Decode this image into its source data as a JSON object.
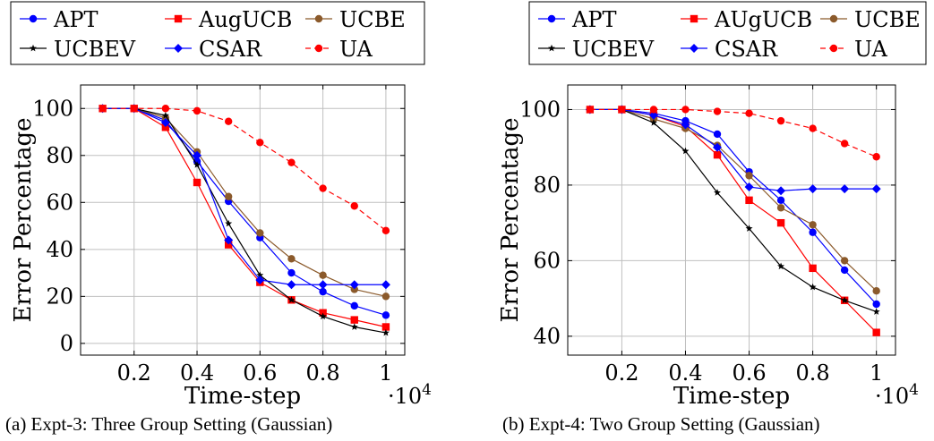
{
  "colors": {
    "APT": "#0000ff",
    "AugUCB": "#ff0000",
    "UCBE": "#8b5a2b",
    "UCBEV": "#000000",
    "CSAR": "#0000ff",
    "UA": "#ff0000",
    "grid": "#bfbfbf"
  },
  "chart_data": [
    {
      "type": "line",
      "caption": "(a) Expt-3: Three Group Setting (Gaussian)",
      "xlabel": "Time-step",
      "xmultiplier": "·10",
      "xmultiplier_exp": "4",
      "ylabel": "Error Percentage",
      "xlim": [
        0.03,
        1.06
      ],
      "ylim": [
        -5,
        110
      ],
      "xticks": [
        0.2,
        0.4,
        0.6,
        0.8,
        1
      ],
      "xtick_labels": [
        "0.2",
        "0.4",
        "0.6",
        "0.8",
        "1"
      ],
      "yticks": [
        0,
        20,
        40,
        60,
        80,
        100
      ],
      "ytick_labels": [
        "0",
        "20",
        "40",
        "60",
        "80",
        "100"
      ],
      "grid": true,
      "legend_position": "top",
      "x": [
        0.1,
        0.2,
        0.3,
        0.4,
        0.5,
        0.6,
        0.7,
        0.8,
        0.9,
        1.0
      ],
      "series": [
        {
          "name": "APT",
          "color_key": "APT",
          "marker": "circle",
          "dashed": false,
          "values": [
            100,
            100,
            95,
            77.5,
            60.5,
            45,
            30,
            22,
            16,
            12
          ]
        },
        {
          "name": "AugUCB",
          "color_key": "AugUCB",
          "marker": "square",
          "dashed": false,
          "values": [
            100,
            100,
            92,
            68.5,
            42,
            26,
            18.5,
            13,
            10,
            7
          ]
        },
        {
          "name": "UCBE",
          "color_key": "UCBE",
          "marker": "circle",
          "dashed": false,
          "values": [
            100,
            100,
            96,
            81.5,
            62.5,
            47,
            36,
            29,
            23,
            20
          ]
        },
        {
          "name": "UCBEV",
          "color_key": "UCBEV",
          "marker": "star",
          "dashed": false,
          "values": [
            100,
            100,
            97,
            76,
            51,
            29,
            18.5,
            11.5,
            7,
            4.5
          ]
        },
        {
          "name": "CSAR",
          "color_key": "CSAR",
          "marker": "diamond",
          "dashed": false,
          "values": [
            100,
            100,
            94,
            80,
            44,
            27,
            25,
            25,
            25,
            25
          ]
        },
        {
          "name": "UA",
          "color_key": "UA",
          "marker": "circle",
          "dashed": true,
          "values": [
            100,
            100,
            100,
            99,
            94.5,
            85.5,
            77,
            66,
            58.5,
            48
          ]
        }
      ]
    },
    {
      "type": "line",
      "caption": "(b) Expt-4: Two Group Setting (Gaussian)",
      "xlabel": "Time-step",
      "xmultiplier": "·10",
      "xmultiplier_exp": "4",
      "ylabel": "Error Percentage",
      "xlim": [
        0.03,
        1.06
      ],
      "ylim": [
        35,
        106.5
      ],
      "xticks": [
        0.2,
        0.4,
        0.6,
        0.8,
        1
      ],
      "xtick_labels": [
        "0.2",
        "0.4",
        "0.6",
        "0.8",
        "1"
      ],
      "yticks": [
        40,
        60,
        80,
        100
      ],
      "ytick_labels": [
        "40",
        "60",
        "80",
        "100"
      ],
      "grid": true,
      "legend_position": "top",
      "x": [
        0.1,
        0.2,
        0.3,
        0.4,
        0.5,
        0.6,
        0.7,
        0.8,
        0.9,
        1.0
      ],
      "series": [
        {
          "name": "APT",
          "color_key": "APT",
          "marker": "circle",
          "dashed": false,
          "values": [
            100,
            100,
            99,
            97,
            93.5,
            83.5,
            76,
            67.5,
            57.5,
            48.5
          ]
        },
        {
          "name": "AUgUCB",
          "color_key": "AugUCB",
          "marker": "square",
          "dashed": false,
          "values": [
            100,
            100,
            98.5,
            95.5,
            88,
            76,
            70,
            58,
            49.5,
            41
          ]
        },
        {
          "name": "UCBE",
          "color_key": "UCBE",
          "marker": "circle",
          "dashed": false,
          "values": [
            100,
            100,
            97.5,
            95,
            90.5,
            82.5,
            74,
            69.5,
            60,
            52
          ]
        },
        {
          "name": "UCBEV",
          "color_key": "UCBEV",
          "marker": "star",
          "dashed": false,
          "values": [
            100,
            100,
            96.5,
            89,
            78,
            68.5,
            58.5,
            53,
            49.5,
            46.5
          ]
        },
        {
          "name": "CSAR",
          "color_key": "CSAR",
          "marker": "diamond",
          "dashed": false,
          "values": [
            100,
            100,
            98.5,
            96,
            90,
            79.5,
            78.5,
            79,
            79,
            79
          ]
        },
        {
          "name": "UA",
          "color_key": "UA",
          "marker": "circle",
          "dashed": true,
          "values": [
            100,
            100,
            100,
            100,
            99.5,
            99,
            97,
            95,
            91,
            87.5
          ]
        }
      ]
    }
  ]
}
